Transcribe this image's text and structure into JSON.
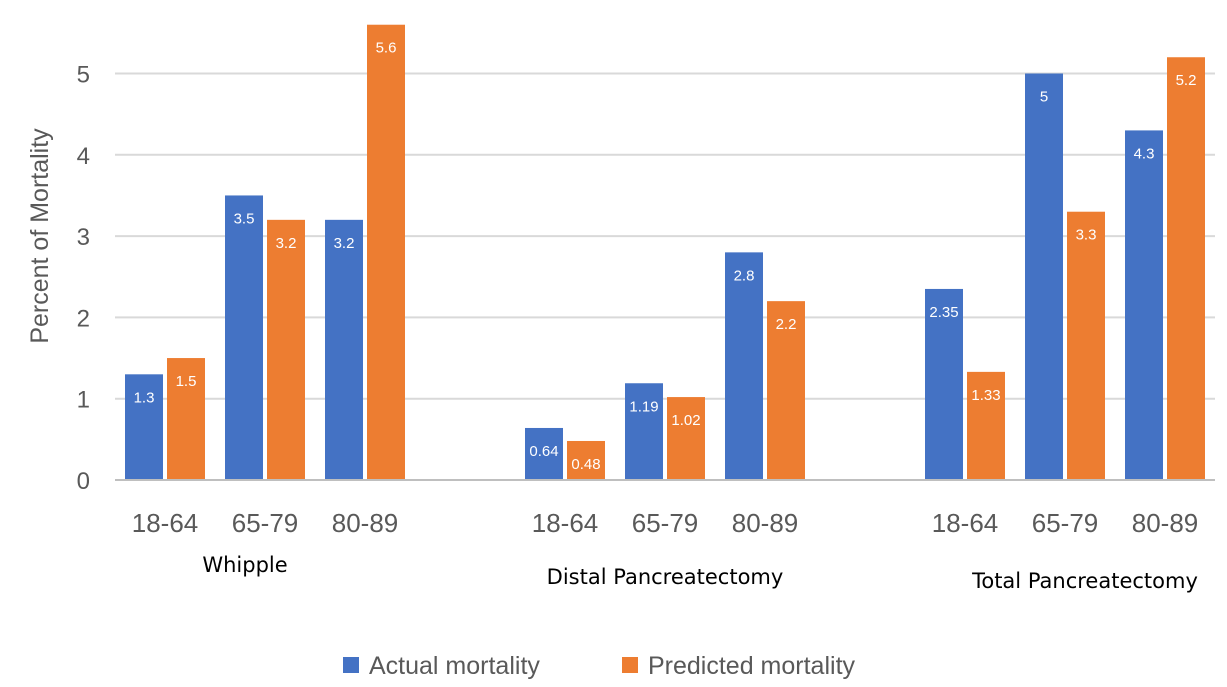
{
  "chart_data": {
    "type": "bar",
    "ylabel": "Percent of Mortality",
    "ylim": [
      0,
      5.6
    ],
    "yticks": [
      "0",
      "1",
      "2",
      "3",
      "4",
      "5"
    ],
    "grid": true,
    "legend_position": "bottom",
    "groups": [
      {
        "name": "Whipple",
        "categories": [
          "18-64",
          "65-79",
          "80-89"
        ],
        "series": [
          {
            "name": "Actual mortality",
            "values": [
              1.3,
              3.5,
              3.2
            ],
            "labels": [
              "1.3",
              "3.5",
              "3.2"
            ]
          },
          {
            "name": "Predicted mortality",
            "values": [
              1.5,
              3.2,
              5.6
            ],
            "labels": [
              "1.5",
              "3.2",
              "5.6"
            ]
          }
        ]
      },
      {
        "name": "Distal Pancreatectomy",
        "categories": [
          "18-64",
          "65-79",
          "80-89"
        ],
        "series": [
          {
            "name": "Actual mortality",
            "values": [
              0.64,
              1.19,
              2.8
            ],
            "labels": [
              "0.64",
              "1.19",
              "2.8"
            ]
          },
          {
            "name": "Predicted mortality",
            "values": [
              0.48,
              1.02,
              2.2
            ],
            "labels": [
              "0.48",
              "1.02",
              "2.2"
            ]
          }
        ]
      },
      {
        "name": "Total Pancreatectomy",
        "categories": [
          "18-64",
          "65-79",
          "80-89"
        ],
        "series": [
          {
            "name": "Actual mortality",
            "values": [
              2.35,
              5,
              4.3
            ],
            "labels": [
              "2.35",
              "5",
              "4.3"
            ]
          },
          {
            "name": "Predicted mortality",
            "values": [
              1.33,
              3.3,
              5.2
            ],
            "labels": [
              "1.33",
              "3.3",
              "5.2"
            ]
          }
        ]
      }
    ],
    "legend": [
      {
        "name": "Actual mortality",
        "color": "#4472c4"
      },
      {
        "name": "Predicted mortality",
        "color": "#ed7d31"
      }
    ]
  }
}
